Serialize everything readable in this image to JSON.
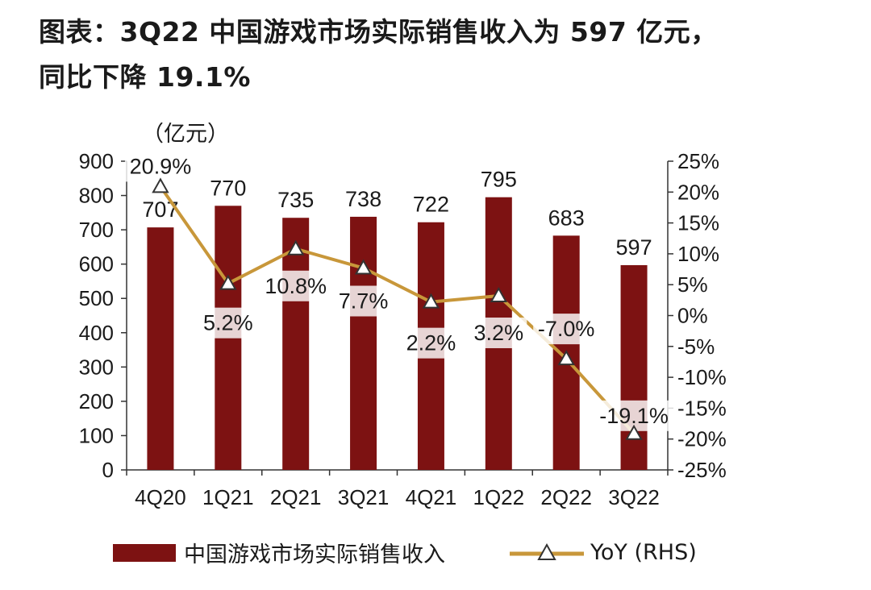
{
  "title_lines": [
    "图表：3Q22 中国游戏市场实际销售收入为 597 亿元，",
    "同比下降 19.1%"
  ],
  "chart_data": {
    "type": "bar",
    "title": "图表：3Q22 中国游戏市场实际销售收入为 597 亿元，同比下降 19.1%",
    "unit_label": "（亿元）",
    "categories": [
      "4Q20",
      "1Q21",
      "2Q21",
      "3Q21",
      "4Q21",
      "1Q22",
      "2Q22",
      "3Q22"
    ],
    "series": [
      {
        "name": "中国游戏市场实际销售收入",
        "type": "bar",
        "axis": "left",
        "values": [
          707,
          770,
          735,
          738,
          722,
          795,
          683,
          597
        ],
        "labels": [
          "707",
          "770",
          "735",
          "738",
          "722",
          "795",
          "683",
          "597"
        ],
        "color": "#7d1212"
      },
      {
        "name": "YoY (RHS)",
        "type": "line",
        "axis": "right",
        "values": [
          20.9,
          5.2,
          10.8,
          7.7,
          2.2,
          3.2,
          -7.0,
          -19.1
        ],
        "labels": [
          "20.9%",
          "5.2%",
          "10.8%",
          "7.7%",
          "2.2%",
          "3.2%",
          "-7.0%",
          "-19.1%"
        ],
        "color": "#c8973a"
      }
    ],
    "ylim_left": [
      0,
      900
    ],
    "yticks_left": [
      0,
      100,
      200,
      300,
      400,
      500,
      600,
      700,
      800,
      900
    ],
    "ylim_right": [
      -25,
      25
    ],
    "yticks_right": [
      25,
      20,
      15,
      10,
      5,
      0,
      -5,
      -10,
      -15,
      -20,
      -25
    ],
    "ytick_labels_right": [
      "25%",
      "20%",
      "15%",
      "10%",
      "5%",
      "0%",
      "-5%",
      "-10%",
      "-15%",
      "-20%",
      "-25%"
    ],
    "legend_position": "bottom"
  }
}
